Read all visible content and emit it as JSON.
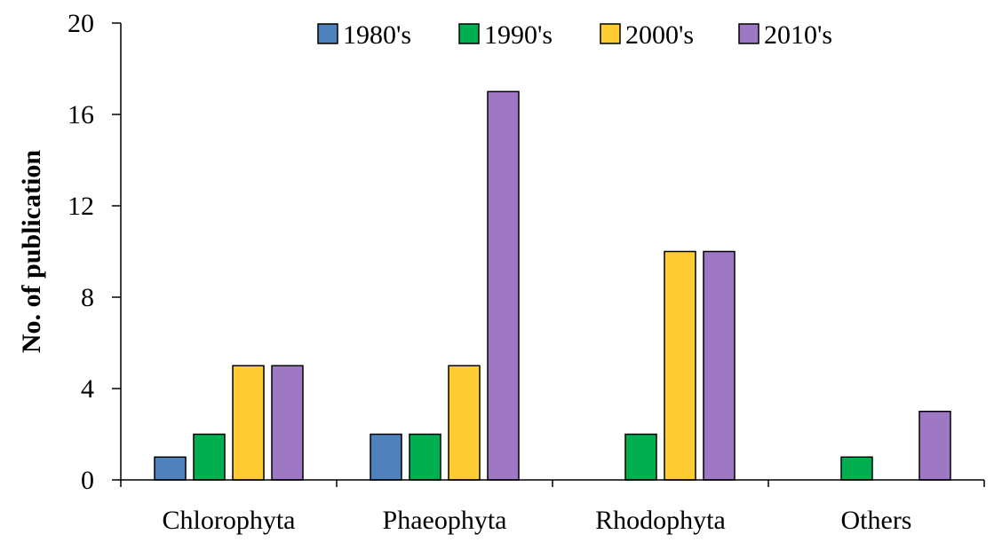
{
  "chart_data": {
    "type": "bar",
    "title": "",
    "xlabel": "",
    "ylabel": "No.  of publication",
    "categories": [
      "Chlorophyta",
      "Phaeophyta",
      "Rhodophyta",
      "Others"
    ],
    "series": [
      {
        "name": "1980's",
        "color": "#4f81bd",
        "values": [
          1,
          2,
          0,
          0
        ]
      },
      {
        "name": "1990's",
        "color": "#00b050",
        "values": [
          2,
          2,
          2,
          1
        ]
      },
      {
        "name": "2000's",
        "color": "#ffcc33",
        "values": [
          5,
          5,
          10,
          0
        ]
      },
      {
        "name": "2010's",
        "color": "#9e78c4",
        "values": [
          5,
          17,
          10,
          3
        ]
      }
    ],
    "ylim": [
      0,
      20
    ],
    "yticks": [
      0,
      4,
      8,
      12,
      16,
      20
    ],
    "grid": false,
    "legend_position": "top"
  }
}
